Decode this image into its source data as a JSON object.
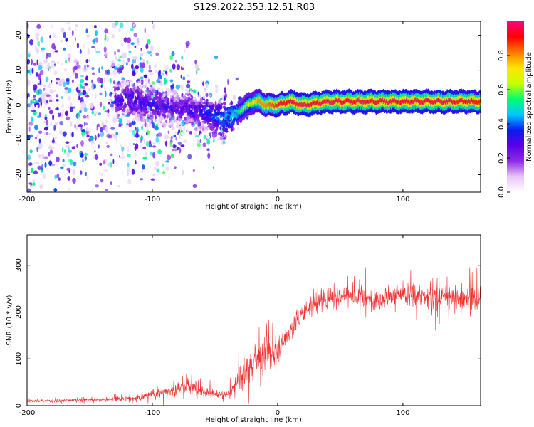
{
  "figure_title": "S129.2022.353.12.51.R03",
  "chart_data": [
    {
      "type": "heatmap",
      "title": "",
      "xlabel": "Height of straight line (km)",
      "ylabel": "Frequency (Hz)",
      "xlim": [
        -200,
        162
      ],
      "ylim": [
        -25,
        24
      ],
      "xticks": [
        -200,
        -100,
        0,
        100
      ],
      "yticks": [
        -20,
        -10,
        0,
        10,
        20
      ],
      "colorbar": {
        "label": "Normalized spectral amplitude",
        "range": [
          0,
          1
        ],
        "ticks": [
          0.0,
          0.2,
          0.4,
          0.6,
          0.8
        ],
        "colors": [
          "#ffffff",
          "#e9c5f7",
          "#8e2ce6",
          "#5a00e8",
          "#0a1cf0",
          "#00c8ff",
          "#00ff70",
          "#c8ff00",
          "#ffe600",
          "#ff7a00",
          "#ff0000",
          "#ff0080"
        ]
      },
      "spectral_ridge": {
        "description_values": "dominant frequency per height",
        "x": [
          -200,
          -150,
          -120,
          -100,
          -80,
          -60,
          -45,
          -35,
          -28,
          -20,
          -15,
          -10,
          0,
          10,
          20,
          40,
          60,
          80,
          100,
          120,
          140,
          160
        ],
        "y": [
          0,
          0,
          2,
          0,
          -1,
          -2,
          -4,
          -3,
          -1,
          1,
          1,
          0,
          0,
          1,
          0,
          1,
          1,
          1,
          1,
          1,
          1,
          1
        ],
        "amplitude": [
          0.2,
          0.25,
          0.35,
          0.35,
          0.3,
          0.35,
          0.45,
          0.5,
          0.6,
          0.7,
          0.8,
          0.8,
          0.9,
          0.95,
          0.95,
          0.95,
          0.95,
          0.95,
          0.95,
          0.95,
          0.95,
          0.9
        ]
      },
      "grid": false
    },
    {
      "type": "line",
      "title": "",
      "xlabel": "Height of straight line (km)",
      "ylabel": "SNR (10 * v/v)",
      "xlim": [
        -200,
        162
      ],
      "ylim": [
        0,
        365
      ],
      "xticks": [
        -200,
        -100,
        0,
        100
      ],
      "yticks": [
        0,
        100,
        200,
        300
      ],
      "line_color": "#ee3333",
      "series": [
        {
          "x": [
            -200,
            -180,
            -160,
            -140,
            -120,
            -110,
            -100,
            -90,
            -80,
            -70,
            -60,
            -50,
            -40,
            -35,
            -30,
            -25,
            -20,
            -15,
            -10,
            -5,
            0,
            5,
            10,
            15,
            20,
            25,
            30,
            40,
            50,
            60,
            70,
            80,
            90,
            100,
            110,
            120,
            130,
            140,
            150,
            160
          ],
          "values": [
            10,
            10,
            12,
            13,
            15,
            18,
            25,
            30,
            35,
            42,
            30,
            25,
            22,
            40,
            60,
            75,
            90,
            100,
            110,
            115,
            120,
            140,
            160,
            180,
            195,
            210,
            220,
            230,
            235,
            235,
            230,
            228,
            235,
            238,
            235,
            230,
            232,
            230,
            225,
            230
          ],
          "noise": [
            5,
            5,
            5,
            6,
            8,
            10,
            14,
            18,
            22,
            26,
            18,
            14,
            12,
            25,
            40,
            45,
            50,
            50,
            50,
            45,
            40,
            40,
            40,
            38,
            35,
            35,
            35,
            35,
            35,
            35,
            35,
            35,
            35,
            35,
            38,
            40,
            40,
            42,
            45,
            45
          ]
        }
      ],
      "grid": false
    }
  ]
}
